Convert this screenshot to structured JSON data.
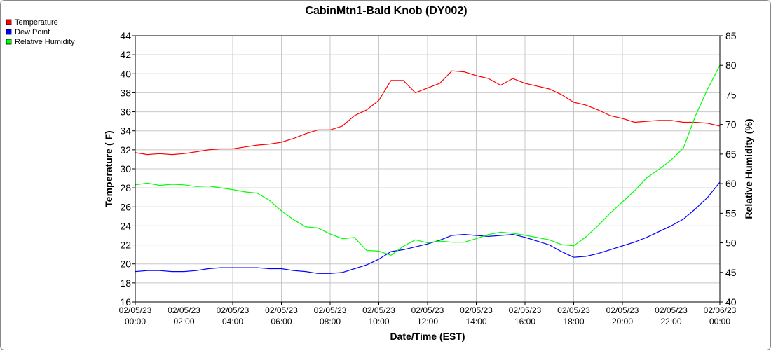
{
  "chart_data": {
    "type": "line",
    "title": "CabinMtn1-Bald Knob (DY002)",
    "xlabel": "Date/Time (EST)",
    "ylabel_left": "Temperature ( F)",
    "ylabel_right": "Relative Humidity (%)",
    "ylim_left": [
      16,
      44
    ],
    "ylim_right": [
      40,
      85
    ],
    "yticks_left": [
      16,
      18,
      20,
      22,
      24,
      26,
      28,
      30,
      32,
      34,
      36,
      38,
      40,
      42,
      44
    ],
    "yticks_right": [
      40,
      45,
      50,
      55,
      60,
      65,
      70,
      75,
      80,
      85
    ],
    "grid": true,
    "legend_position": "top-left",
    "x_ticks": [
      {
        "date": "02/05/23",
        "time": "00:00"
      },
      {
        "date": "02/05/23",
        "time": "02:00"
      },
      {
        "date": "02/05/23",
        "time": "04:00"
      },
      {
        "date": "02/05/23",
        "time": "06:00"
      },
      {
        "date": "02/05/23",
        "time": "08:00"
      },
      {
        "date": "02/05/23",
        "time": "10:00"
      },
      {
        "date": "02/05/23",
        "time": "12:00"
      },
      {
        "date": "02/05/23",
        "time": "14:00"
      },
      {
        "date": "02/05/23",
        "time": "16:00"
      },
      {
        "date": "02/05/23",
        "time": "18:00"
      },
      {
        "date": "02/05/23",
        "time": "20:00"
      },
      {
        "date": "02/05/23",
        "time": "22:00"
      },
      {
        "date": "02/06/23",
        "time": "00:00"
      }
    ],
    "series": [
      {
        "name": "Temperature",
        "axis": "left",
        "color": "#ff0000",
        "hours": [
          0,
          0.5,
          1,
          1.5,
          2,
          2.5,
          3,
          3.5,
          4,
          4.5,
          5,
          5.5,
          6,
          6.5,
          7,
          7.5,
          8,
          8.5,
          9,
          9.5,
          10,
          10.5,
          11,
          11.5,
          12,
          12.5,
          13,
          13.5,
          14,
          14.5,
          15,
          15.5,
          16,
          16.5,
          17,
          17.5,
          18,
          18.5,
          19,
          19.5,
          20,
          20.5,
          21,
          21.5,
          22,
          22.5,
          23,
          23.5,
          24
        ],
        "values": [
          31.7,
          31.5,
          31.6,
          31.5,
          31.6,
          31.8,
          32.0,
          32.1,
          32.1,
          32.3,
          32.5,
          32.6,
          32.8,
          33.2,
          33.7,
          34.1,
          34.1,
          34.5,
          35.6,
          36.2,
          37.2,
          39.3,
          39.3,
          38.0,
          38.5,
          39.0,
          40.3,
          40.2,
          39.8,
          39.5,
          38.8,
          39.5,
          39.0,
          38.7,
          38.4,
          37.8,
          37.0,
          36.7,
          36.2,
          35.6,
          35.3,
          34.9,
          35.0,
          35.1,
          35.1,
          34.9,
          34.9,
          34.8,
          34.5
        ]
      },
      {
        "name": "Dew Point",
        "axis": "left",
        "color": "#0000ff",
        "hours": [
          0,
          0.5,
          1,
          1.5,
          2,
          2.5,
          3,
          3.5,
          4,
          4.5,
          5,
          5.5,
          6,
          6.5,
          7,
          7.5,
          8,
          8.5,
          9,
          9.5,
          10,
          10.5,
          11,
          11.5,
          12,
          12.5,
          13,
          13.5,
          14,
          14.5,
          15,
          15.5,
          16,
          16.5,
          17,
          17.5,
          18,
          18.5,
          19,
          19.5,
          20,
          20.5,
          21,
          21.5,
          22,
          22.5,
          23,
          23.5,
          24
        ],
        "values": [
          19.2,
          19.3,
          19.3,
          19.2,
          19.2,
          19.3,
          19.5,
          19.6,
          19.6,
          19.6,
          19.6,
          19.5,
          19.5,
          19.3,
          19.2,
          19.0,
          19.0,
          19.1,
          19.5,
          19.9,
          20.5,
          21.3,
          21.5,
          21.8,
          22.1,
          22.5,
          23.0,
          23.1,
          23.0,
          22.9,
          23.0,
          23.1,
          22.8,
          22.4,
          22.0,
          21.3,
          20.7,
          20.8,
          21.1,
          21.5,
          21.9,
          22.3,
          22.8,
          23.4,
          24.0,
          24.7,
          25.8,
          27.0,
          28.6
        ]
      },
      {
        "name": "Relative Humidity",
        "axis": "right",
        "color": "#00ff00",
        "hours": [
          0,
          0.5,
          1,
          1.5,
          2,
          2.5,
          3,
          3.5,
          4,
          4.5,
          5,
          5.5,
          6,
          6.5,
          7,
          7.5,
          8,
          8.5,
          9,
          9.5,
          10,
          10.5,
          11,
          11.5,
          12,
          12.5,
          13,
          13.5,
          14,
          14.5,
          15,
          15.5,
          16,
          16.5,
          17,
          17.5,
          18,
          18.5,
          19,
          19.5,
          20,
          20.5,
          21,
          21.5,
          22,
          22.5,
          23,
          23.5,
          24
        ],
        "values": [
          59.8,
          60.1,
          59.7,
          59.9,
          59.8,
          59.5,
          59.6,
          59.3,
          59.0,
          58.6,
          58.4,
          57.2,
          55.4,
          53.9,
          52.7,
          52.5,
          51.5,
          50.7,
          50.9,
          48.7,
          48.6,
          47.9,
          49.4,
          50.5,
          50.0,
          50.3,
          50.1,
          50.1,
          50.7,
          51.4,
          51.8,
          51.6,
          51.3,
          50.9,
          50.5,
          49.7,
          49.5,
          51.0,
          52.9,
          55.0,
          56.9,
          58.8,
          61.0,
          62.4,
          64.0,
          66.0,
          71.5,
          76.0,
          80.0
        ]
      }
    ]
  }
}
